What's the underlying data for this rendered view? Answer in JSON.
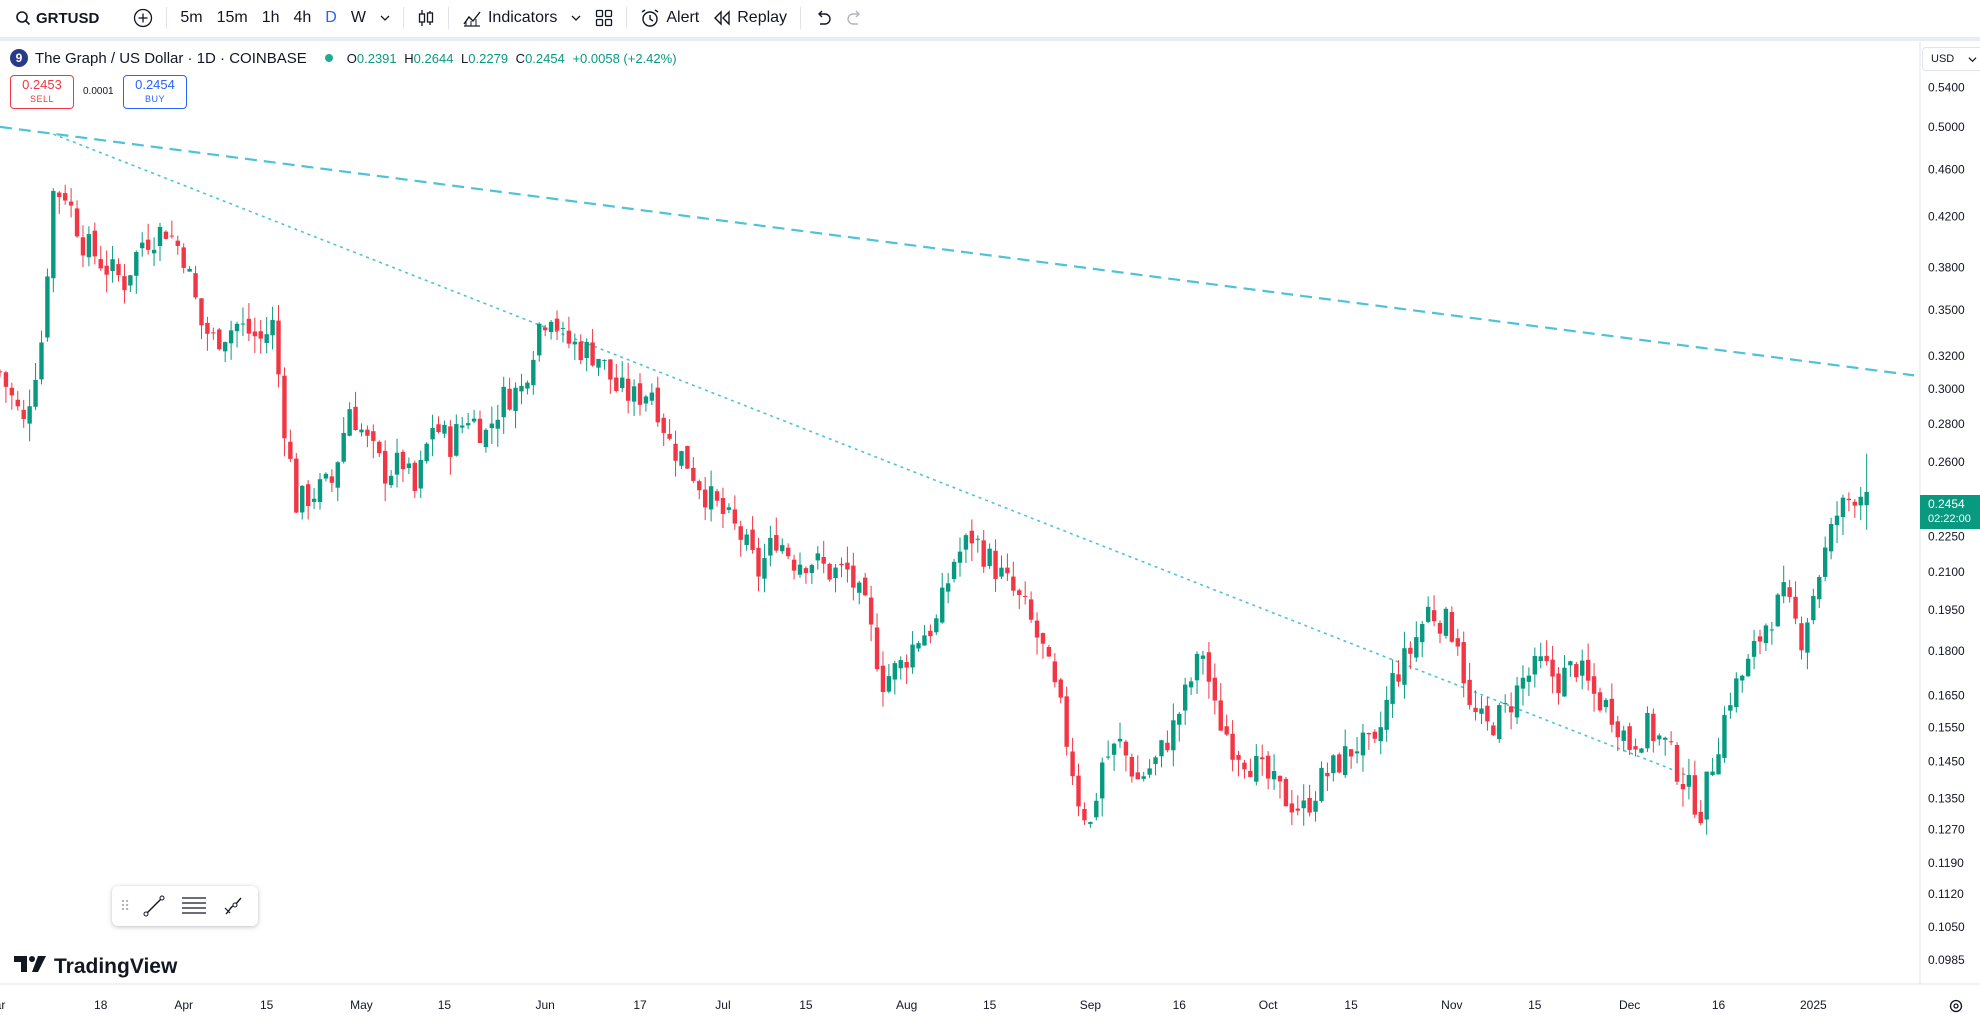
{
  "toolbar": {
    "symbol": "GRTUSD",
    "timeframes": [
      "5m",
      "15m",
      "1h",
      "4h",
      "D",
      "W"
    ],
    "active_timeframe": "D",
    "indicators_label": "Indicators",
    "alert_label": "Alert",
    "replay_label": "Replay"
  },
  "legend": {
    "logo_glyph": "9",
    "title": "The Graph / US Dollar · 1D · COINBASE",
    "open_key": "O",
    "open": "0.2391",
    "high_key": "H",
    "high": "0.2644",
    "low_key": "L",
    "low": "0.2279",
    "close_key": "C",
    "close": "0.2454",
    "change": "+0.0058 (+2.42%)"
  },
  "trade": {
    "sell_price": "0.2453",
    "sell_label": "SELL",
    "spread": "0.0001",
    "buy_price": "0.2454",
    "buy_label": "BUY"
  },
  "price_axis": {
    "currency": "USD",
    "last_price": "0.2454",
    "countdown": "02:22:00"
  },
  "brand": "TradingView",
  "colors": {
    "up": "#089981",
    "down": "#f23645",
    "trendline": "#4ec3d6",
    "price_tag": "#089981"
  },
  "chart_data": {
    "type": "candlestick",
    "title": "The Graph / US Dollar · 1D · COINBASE",
    "scale": "log",
    "ylim": [
      0.094,
      0.59
    ],
    "y_ticks": [
      "0.5400",
      "0.5000",
      "0.4600",
      "0.4200",
      "0.3800",
      "0.3500",
      "0.3200",
      "0.3000",
      "0.2800",
      "0.2600",
      "0.2250",
      "0.2100",
      "0.1950",
      "0.1800",
      "0.1650",
      "0.1550",
      "0.1450",
      "0.1350",
      "0.1270",
      "0.1190",
      "0.1120",
      "0.1050",
      "0.0985"
    ],
    "x_ticks": [
      {
        "label": "ar",
        "date": "2024-03-01"
      },
      {
        "label": "18",
        "date": "2024-03-18"
      },
      {
        "label": "Apr",
        "date": "2024-04-01"
      },
      {
        "label": "15",
        "date": "2024-04-15"
      },
      {
        "label": "May",
        "date": "2024-05-01"
      },
      {
        "label": "15",
        "date": "2024-05-15"
      },
      {
        "label": "Jun",
        "date": "2024-06-01"
      },
      {
        "label": "17",
        "date": "2024-06-17"
      },
      {
        "label": "Jul",
        "date": "2024-07-01"
      },
      {
        "label": "15",
        "date": "2024-07-15"
      },
      {
        "label": "Aug",
        "date": "2024-08-01"
      },
      {
        "label": "15",
        "date": "2024-08-15"
      },
      {
        "label": "Sep",
        "date": "2024-09-01"
      },
      {
        "label": "16",
        "date": "2024-09-16"
      },
      {
        "label": "Oct",
        "date": "2024-10-01"
      },
      {
        "label": "15",
        "date": "2024-10-15"
      },
      {
        "label": "Nov",
        "date": "2024-11-01"
      },
      {
        "label": "15",
        "date": "2024-11-15"
      },
      {
        "label": "Dec",
        "date": "2024-12-01"
      },
      {
        "label": "16",
        "date": "2024-12-16"
      },
      {
        "label": "2025",
        "date": "2025-01-01"
      }
    ],
    "x_range": [
      "2024-03-01",
      "2025-01-19"
    ],
    "closes_anchor": [
      [
        0,
        0.31
      ],
      [
        4,
        0.28
      ],
      [
        7,
        0.33
      ],
      [
        9,
        0.44
      ],
      [
        11,
        0.44
      ],
      [
        14,
        0.4
      ],
      [
        18,
        0.38
      ],
      [
        21,
        0.37
      ],
      [
        24,
        0.4
      ],
      [
        28,
        0.41
      ],
      [
        31,
        0.39
      ],
      [
        34,
        0.34
      ],
      [
        36,
        0.33
      ],
      [
        40,
        0.34
      ],
      [
        44,
        0.33
      ],
      [
        46,
        0.34
      ],
      [
        48,
        0.28
      ],
      [
        50,
        0.24
      ],
      [
        53,
        0.245
      ],
      [
        56,
        0.25
      ],
      [
        59,
        0.29
      ],
      [
        62,
        0.27
      ],
      [
        65,
        0.255
      ],
      [
        68,
        0.26
      ],
      [
        70,
        0.245
      ],
      [
        73,
        0.28
      ],
      [
        76,
        0.27
      ],
      [
        79,
        0.285
      ],
      [
        82,
        0.275
      ],
      [
        85,
        0.295
      ],
      [
        88,
        0.3
      ],
      [
        91,
        0.34
      ],
      [
        93,
        0.35
      ],
      [
        95,
        0.33
      ],
      [
        98,
        0.325
      ],
      [
        101,
        0.32
      ],
      [
        104,
        0.3
      ],
      [
        107,
        0.295
      ],
      [
        110,
        0.3
      ],
      [
        113,
        0.27
      ],
      [
        116,
        0.26
      ],
      [
        119,
        0.245
      ],
      [
        122,
        0.235
      ],
      [
        125,
        0.225
      ],
      [
        128,
        0.21
      ],
      [
        131,
        0.225
      ],
      [
        134,
        0.215
      ],
      [
        137,
        0.215
      ],
      [
        140,
        0.21
      ],
      [
        143,
        0.21
      ],
      [
        146,
        0.195
      ],
      [
        149,
        0.17
      ],
      [
        152,
        0.175
      ],
      [
        155,
        0.185
      ],
      [
        158,
        0.19
      ],
      [
        161,
        0.215
      ],
      [
        164,
        0.225
      ],
      [
        167,
        0.215
      ],
      [
        170,
        0.205
      ],
      [
        173,
        0.195
      ],
      [
        176,
        0.18
      ],
      [
        179,
        0.16
      ],
      [
        182,
        0.135
      ],
      [
        184,
        0.128
      ],
      [
        186,
        0.145
      ],
      [
        189,
        0.15
      ],
      [
        192,
        0.14
      ],
      [
        195,
        0.145
      ],
      [
        198,
        0.155
      ],
      [
        201,
        0.17
      ],
      [
        203,
        0.18
      ],
      [
        205,
        0.16
      ],
      [
        208,
        0.15
      ],
      [
        211,
        0.145
      ],
      [
        214,
        0.14
      ],
      [
        217,
        0.135
      ],
      [
        220,
        0.132
      ],
      [
        223,
        0.14
      ],
      [
        226,
        0.145
      ],
      [
        229,
        0.15
      ],
      [
        232,
        0.148
      ],
      [
        235,
        0.17
      ],
      [
        238,
        0.18
      ],
      [
        241,
        0.195
      ],
      [
        244,
        0.19
      ],
      [
        246,
        0.185
      ],
      [
        248,
        0.16
      ],
      [
        251,
        0.155
      ],
      [
        254,
        0.16
      ],
      [
        257,
        0.17
      ],
      [
        260,
        0.175
      ],
      [
        263,
        0.17
      ],
      [
        266,
        0.175
      ],
      [
        269,
        0.165
      ],
      [
        272,
        0.16
      ],
      [
        275,
        0.15
      ],
      [
        278,
        0.155
      ],
      [
        281,
        0.15
      ],
      [
        284,
        0.14
      ],
      [
        287,
        0.132
      ],
      [
        289,
        0.145
      ],
      [
        292,
        0.165
      ],
      [
        295,
        0.175
      ],
      [
        298,
        0.19
      ],
      [
        301,
        0.2
      ],
      [
        304,
        0.185
      ],
      [
        307,
        0.21
      ],
      [
        310,
        0.235
      ],
      [
        313,
        0.245
      ],
      [
        315,
        0.2454
      ]
    ],
    "trendlines": [
      {
        "style": "dashed",
        "from": {
          "date": "2024-03-01",
          "price": 0.5
        },
        "to": {
          "date": "2025-01-18",
          "price": 0.308
        }
      },
      {
        "style": "dotted",
        "from": {
          "date": "2024-03-10",
          "price": 0.493
        },
        "to": {
          "date": "2024-12-11",
          "price": 0.141
        }
      }
    ],
    "last": {
      "open": 0.2391,
      "high": 0.2644,
      "low": 0.2279,
      "close": 0.2454
    }
  }
}
